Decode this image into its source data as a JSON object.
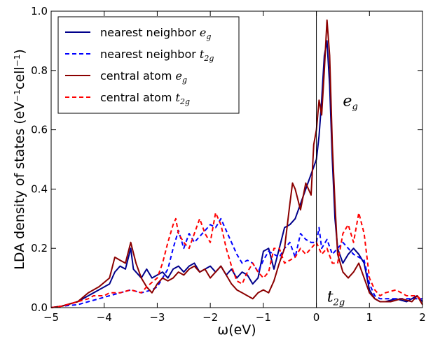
{
  "chart_data": {
    "type": "line",
    "xlabel": "ω(eV)",
    "ylabel": "LDA density of states (eV⁻¹cell⁻¹)",
    "xlim": [
      -5,
      2
    ],
    "ylim": [
      0,
      1.0
    ],
    "xticks": [
      "−5",
      "−4",
      "−3",
      "−2",
      "−1",
      "0",
      "1",
      "2"
    ],
    "yticks": [
      "0.0",
      "0.2",
      "0.4",
      "0.6",
      "0.8",
      "1.0"
    ],
    "vline_x": 0,
    "legend": "top-left",
    "annotations": [
      {
        "text": "e",
        "sub": "g",
        "x": 0.5,
        "y": 0.68
      },
      {
        "text": "t",
        "sub": "2g",
        "x": 0.2,
        "y": 0.02
      }
    ],
    "series": [
      {
        "name": "nearest neighbor e",
        "name_sub": "g",
        "color": "#00008b",
        "dash": "solid",
        "points": [
          [
            -5,
            0.0
          ],
          [
            -4.8,
            0.005
          ],
          [
            -4.5,
            0.02
          ],
          [
            -4.3,
            0.04
          ],
          [
            -4.1,
            0.06
          ],
          [
            -3.9,
            0.08
          ],
          [
            -3.8,
            0.12
          ],
          [
            -3.7,
            0.14
          ],
          [
            -3.6,
            0.13
          ],
          [
            -3.5,
            0.2
          ],
          [
            -3.45,
            0.13
          ],
          [
            -3.3,
            0.1
          ],
          [
            -3.2,
            0.13
          ],
          [
            -3.1,
            0.1
          ],
          [
            -3.0,
            0.11
          ],
          [
            -2.9,
            0.12
          ],
          [
            -2.8,
            0.1
          ],
          [
            -2.7,
            0.13
          ],
          [
            -2.6,
            0.14
          ],
          [
            -2.5,
            0.12
          ],
          [
            -2.4,
            0.14
          ],
          [
            -2.3,
            0.15
          ],
          [
            -2.2,
            0.12
          ],
          [
            -2.1,
            0.13
          ],
          [
            -2.0,
            0.14
          ],
          [
            -1.9,
            0.12
          ],
          [
            -1.8,
            0.14
          ],
          [
            -1.7,
            0.11
          ],
          [
            -1.6,
            0.13
          ],
          [
            -1.5,
            0.1
          ],
          [
            -1.4,
            0.12
          ],
          [
            -1.3,
            0.11
          ],
          [
            -1.2,
            0.08
          ],
          [
            -1.1,
            0.1
          ],
          [
            -1.0,
            0.19
          ],
          [
            -0.9,
            0.2
          ],
          [
            -0.8,
            0.13
          ],
          [
            -0.7,
            0.2
          ],
          [
            -0.6,
            0.27
          ],
          [
            -0.5,
            0.28
          ],
          [
            -0.4,
            0.3
          ],
          [
            -0.3,
            0.35
          ],
          [
            -0.2,
            0.4
          ],
          [
            -0.1,
            0.45
          ],
          [
            0.0,
            0.5
          ],
          [
            0.05,
            0.58
          ],
          [
            0.1,
            0.7
          ],
          [
            0.15,
            0.85
          ],
          [
            0.2,
            0.9
          ],
          [
            0.25,
            0.75
          ],
          [
            0.3,
            0.5
          ],
          [
            0.35,
            0.3
          ],
          [
            0.4,
            0.2
          ],
          [
            0.5,
            0.15
          ],
          [
            0.6,
            0.18
          ],
          [
            0.7,
            0.2
          ],
          [
            0.8,
            0.18
          ],
          [
            0.9,
            0.15
          ],
          [
            1.0,
            0.06
          ],
          [
            1.1,
            0.03
          ],
          [
            1.2,
            0.02
          ],
          [
            1.3,
            0.02
          ],
          [
            1.5,
            0.03
          ],
          [
            1.7,
            0.02
          ],
          [
            1.9,
            0.04
          ],
          [
            2.0,
            0.02
          ]
        ]
      },
      {
        "name": "nearest neighbor t",
        "name_sub": "2g",
        "color": "#0000ff",
        "dash": "dashed",
        "points": [
          [
            -5,
            0.0
          ],
          [
            -4.8,
            0.005
          ],
          [
            -4.5,
            0.01
          ],
          [
            -4.3,
            0.02
          ],
          [
            -4.1,
            0.03
          ],
          [
            -3.9,
            0.04
          ],
          [
            -3.7,
            0.05
          ],
          [
            -3.5,
            0.06
          ],
          [
            -3.3,
            0.05
          ],
          [
            -3.1,
            0.06
          ],
          [
            -3.0,
            0.07
          ],
          [
            -2.9,
            0.1
          ],
          [
            -2.8,
            0.13
          ],
          [
            -2.7,
            0.2
          ],
          [
            -2.6,
            0.26
          ],
          [
            -2.5,
            0.2
          ],
          [
            -2.4,
            0.25
          ],
          [
            -2.3,
            0.22
          ],
          [
            -2.2,
            0.24
          ],
          [
            -2.1,
            0.26
          ],
          [
            -2.0,
            0.28
          ],
          [
            -1.9,
            0.27
          ],
          [
            -1.8,
            0.3
          ],
          [
            -1.7,
            0.26
          ],
          [
            -1.6,
            0.22
          ],
          [
            -1.5,
            0.18
          ],
          [
            -1.4,
            0.15
          ],
          [
            -1.3,
            0.16
          ],
          [
            -1.2,
            0.15
          ],
          [
            -1.1,
            0.12
          ],
          [
            -1.0,
            0.16
          ],
          [
            -0.9,
            0.19
          ],
          [
            -0.8,
            0.18
          ],
          [
            -0.7,
            0.17
          ],
          [
            -0.6,
            0.2
          ],
          [
            -0.5,
            0.22
          ],
          [
            -0.4,
            0.17
          ],
          [
            -0.3,
            0.25
          ],
          [
            -0.2,
            0.23
          ],
          [
            -0.1,
            0.22
          ],
          [
            0.0,
            0.22
          ],
          [
            0.05,
            0.27
          ],
          [
            0.1,
            0.2
          ],
          [
            0.2,
            0.23
          ],
          [
            0.3,
            0.18
          ],
          [
            0.4,
            0.2
          ],
          [
            0.5,
            0.22
          ],
          [
            0.6,
            0.2
          ],
          [
            0.7,
            0.18
          ],
          [
            0.8,
            0.17
          ],
          [
            0.9,
            0.16
          ],
          [
            1.0,
            0.08
          ],
          [
            1.1,
            0.04
          ],
          [
            1.2,
            0.03
          ],
          [
            1.4,
            0.03
          ],
          [
            1.6,
            0.03
          ],
          [
            1.8,
            0.03
          ],
          [
            2.0,
            0.03
          ]
        ]
      },
      {
        "name": "central atom e",
        "name_sub": "g",
        "color": "#8b0000",
        "dash": "solid",
        "points": [
          [
            -5,
            0.0
          ],
          [
            -4.8,
            0.005
          ],
          [
            -4.5,
            0.02
          ],
          [
            -4.3,
            0.05
          ],
          [
            -4.1,
            0.07
          ],
          [
            -3.9,
            0.1
          ],
          [
            -3.8,
            0.17
          ],
          [
            -3.7,
            0.16
          ],
          [
            -3.6,
            0.15
          ],
          [
            -3.5,
            0.22
          ],
          [
            -3.4,
            0.15
          ],
          [
            -3.3,
            0.1
          ],
          [
            -3.2,
            0.07
          ],
          [
            -3.1,
            0.05
          ],
          [
            -3.0,
            0.08
          ],
          [
            -2.9,
            0.1
          ],
          [
            -2.8,
            0.09
          ],
          [
            -2.7,
            0.1
          ],
          [
            -2.6,
            0.12
          ],
          [
            -2.5,
            0.11
          ],
          [
            -2.4,
            0.13
          ],
          [
            -2.3,
            0.14
          ],
          [
            -2.2,
            0.12
          ],
          [
            -2.1,
            0.13
          ],
          [
            -2.0,
            0.1
          ],
          [
            -1.9,
            0.12
          ],
          [
            -1.8,
            0.14
          ],
          [
            -1.7,
            0.11
          ],
          [
            -1.6,
            0.08
          ],
          [
            -1.5,
            0.06
          ],
          [
            -1.4,
            0.05
          ],
          [
            -1.3,
            0.04
          ],
          [
            -1.2,
            0.03
          ],
          [
            -1.1,
            0.05
          ],
          [
            -1.0,
            0.06
          ],
          [
            -0.9,
            0.05
          ],
          [
            -0.8,
            0.09
          ],
          [
            -0.7,
            0.15
          ],
          [
            -0.6,
            0.2
          ],
          [
            -0.5,
            0.35
          ],
          [
            -0.45,
            0.42
          ],
          [
            -0.4,
            0.4
          ],
          [
            -0.3,
            0.33
          ],
          [
            -0.2,
            0.42
          ],
          [
            -0.1,
            0.38
          ],
          [
            -0.05,
            0.55
          ],
          [
            0.0,
            0.6
          ],
          [
            0.05,
            0.7
          ],
          [
            0.1,
            0.65
          ],
          [
            0.15,
            0.8
          ],
          [
            0.2,
            0.97
          ],
          [
            0.25,
            0.85
          ],
          [
            0.3,
            0.55
          ],
          [
            0.35,
            0.35
          ],
          [
            0.4,
            0.18
          ],
          [
            0.5,
            0.12
          ],
          [
            0.6,
            0.1
          ],
          [
            0.7,
            0.12
          ],
          [
            0.8,
            0.15
          ],
          [
            0.9,
            0.1
          ],
          [
            1.0,
            0.05
          ],
          [
            1.1,
            0.03
          ],
          [
            1.2,
            0.02
          ],
          [
            1.4,
            0.02
          ],
          [
            1.6,
            0.03
          ],
          [
            1.8,
            0.02
          ],
          [
            1.9,
            0.04
          ],
          [
            2.0,
            0.01
          ]
        ]
      },
      {
        "name": "central atom t",
        "name_sub": "2g",
        "color": "#ff0000",
        "dash": "dashed",
        "points": [
          [
            -5,
            0.0
          ],
          [
            -4.8,
            0.005
          ],
          [
            -4.5,
            0.02
          ],
          [
            -4.3,
            0.03
          ],
          [
            -4.2,
            0.04
          ],
          [
            -4.0,
            0.04
          ],
          [
            -3.9,
            0.05
          ],
          [
            -3.7,
            0.05
          ],
          [
            -3.5,
            0.06
          ],
          [
            -3.3,
            0.05
          ],
          [
            -3.2,
            0.07
          ],
          [
            -3.0,
            0.1
          ],
          [
            -2.9,
            0.15
          ],
          [
            -2.8,
            0.22
          ],
          [
            -2.7,
            0.28
          ],
          [
            -2.65,
            0.3
          ],
          [
            -2.6,
            0.25
          ],
          [
            -2.5,
            0.22
          ],
          [
            -2.4,
            0.2
          ],
          [
            -2.3,
            0.25
          ],
          [
            -2.2,
            0.3
          ],
          [
            -2.1,
            0.25
          ],
          [
            -2.0,
            0.22
          ],
          [
            -1.9,
            0.32
          ],
          [
            -1.8,
            0.28
          ],
          [
            -1.7,
            0.2
          ],
          [
            -1.6,
            0.14
          ],
          [
            -1.5,
            0.09
          ],
          [
            -1.4,
            0.08
          ],
          [
            -1.3,
            0.12
          ],
          [
            -1.2,
            0.15
          ],
          [
            -1.1,
            0.12
          ],
          [
            -1.0,
            0.1
          ],
          [
            -0.9,
            0.12
          ],
          [
            -0.8,
            0.2
          ],
          [
            -0.7,
            0.2
          ],
          [
            -0.6,
            0.15
          ],
          [
            -0.5,
            0.16
          ],
          [
            -0.4,
            0.17
          ],
          [
            -0.3,
            0.2
          ],
          [
            -0.2,
            0.18
          ],
          [
            -0.1,
            0.2
          ],
          [
            0.0,
            0.22
          ],
          [
            0.05,
            0.2
          ],
          [
            0.1,
            0.18
          ],
          [
            0.2,
            0.2
          ],
          [
            0.3,
            0.15
          ],
          [
            0.4,
            0.15
          ],
          [
            0.5,
            0.25
          ],
          [
            0.6,
            0.28
          ],
          [
            0.7,
            0.22
          ],
          [
            0.8,
            0.32
          ],
          [
            0.9,
            0.25
          ],
          [
            1.0,
            0.1
          ],
          [
            1.1,
            0.06
          ],
          [
            1.2,
            0.04
          ],
          [
            1.3,
            0.05
          ],
          [
            1.5,
            0.06
          ],
          [
            1.7,
            0.04
          ],
          [
            1.9,
            0.04
          ],
          [
            2.0,
            0.02
          ]
        ]
      }
    ]
  }
}
